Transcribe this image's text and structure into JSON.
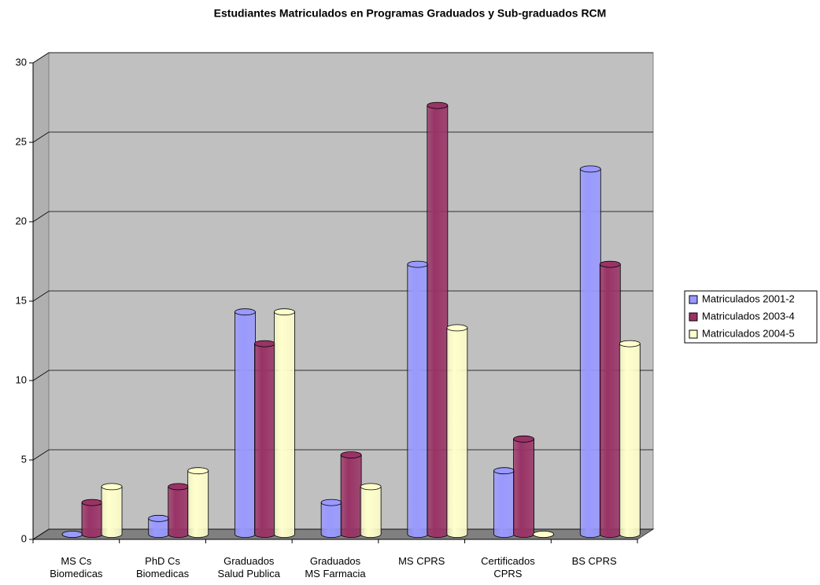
{
  "chart_data": {
    "type": "bar3d",
    "title": "Estudiantes Matriculados en Programas Graduados y Sub-graduados RCM",
    "categories": [
      "MS Cs\nBiomedicas",
      "PhD Cs\nBiomedicas",
      "Graduados\nSalud Publica",
      "Graduados\nMS Farmacia",
      "MS CPRS",
      "Certificados\nCPRS",
      "BS CPRS"
    ],
    "series": [
      {
        "name": "Matriculados 2001-2",
        "color": "#9999ff",
        "values": [
          0,
          1,
          14,
          2,
          17,
          4,
          23
        ]
      },
      {
        "name": "Matriculados 2003-4",
        "color": "#993366",
        "values": [
          2,
          3,
          12,
          5,
          27,
          6,
          17
        ]
      },
      {
        "name": "Matriculados 2004-5",
        "color": "#ffffcc",
        "values": [
          3,
          4,
          14,
          3,
          13,
          0,
          12
        ]
      }
    ],
    "ylim": [
      0,
      30
    ],
    "yticks": [
      0,
      5,
      10,
      15,
      20,
      25,
      30
    ],
    "grid": true,
    "legend": "right"
  }
}
